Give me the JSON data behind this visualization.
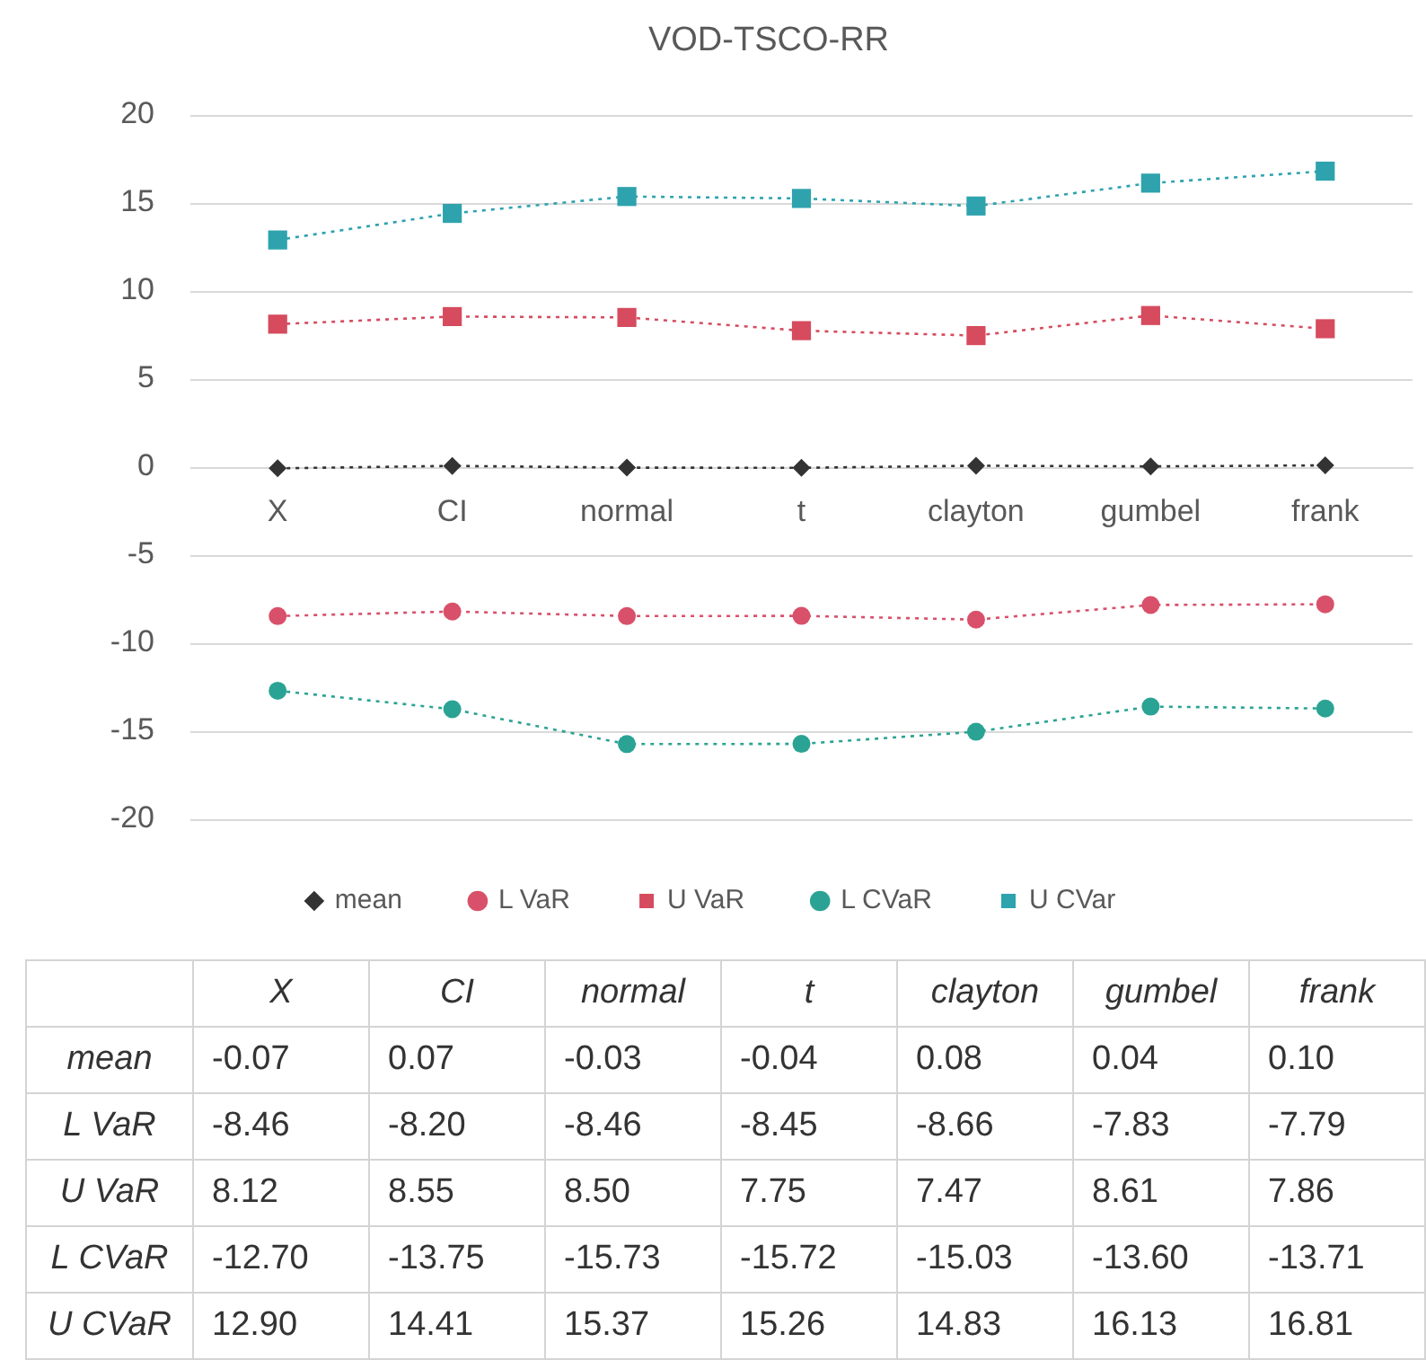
{
  "chart_data": {
    "type": "line",
    "title": "VOD-TSCO-RR",
    "categories": [
      "X",
      "CI",
      "normal",
      "t",
      "clayton",
      "gumbel",
      "frank"
    ],
    "ylim": [
      -20,
      20
    ],
    "yticks": [
      -20,
      -15,
      -10,
      -5,
      0,
      5,
      10,
      15,
      20
    ],
    "grid": "y",
    "legend": "bottom",
    "line_style": "dotted",
    "annotations": [
      "mean",
      "L VaR",
      "U VaR",
      "L CVaR",
      "U CVaR"
    ],
    "series": [
      {
        "name": "mean",
        "color": "#333333",
        "marker": "diamond",
        "values": [
          -0.07,
          0.07,
          -0.03,
          -0.04,
          0.08,
          0.04,
          0.1
        ],
        "value_labels": [
          "-0.07",
          "0.07",
          "-0.03",
          "-0.04",
          "0.08",
          "0.04",
          "0.10"
        ]
      },
      {
        "name": "L VaR",
        "color": "#d9506a",
        "marker": "circle",
        "values": [
          -8.46,
          -8.2,
          -8.46,
          -8.45,
          -8.66,
          -7.83,
          -7.79
        ],
        "value_labels": [
          "-8.46",
          "-8.20",
          "-8.46",
          "-8.45",
          "-8.66",
          "-7.83",
          "-7.79"
        ]
      },
      {
        "name": "U VaR",
        "color": "#d64b5e",
        "marker": "square",
        "values": [
          8.12,
          8.55,
          8.5,
          7.75,
          7.47,
          8.61,
          7.86
        ],
        "value_labels": [
          "8.12",
          "8.55",
          "8.50",
          "7.75",
          "7.47",
          "8.61",
          "7.86"
        ]
      },
      {
        "name": "L CVaR",
        "color": "#2aa394",
        "marker": "circle",
        "values": [
          -12.7,
          -13.75,
          -15.73,
          -15.72,
          -15.03,
          -13.6,
          -13.71
        ],
        "value_labels": [
          "-12.70",
          "-13.75",
          "-15.73",
          "-15.72",
          "-15.03",
          "-13.60",
          "-13.71"
        ]
      },
      {
        "name": "U CVar",
        "color": "#2ea3ae",
        "marker": "square",
        "values": [
          12.9,
          14.41,
          15.37,
          15.26,
          14.83,
          16.13,
          16.81
        ],
        "value_labels": [
          "12.90",
          "14.41",
          "15.37",
          "15.26",
          "14.83",
          "16.13",
          "16.81"
        ]
      }
    ]
  }
}
